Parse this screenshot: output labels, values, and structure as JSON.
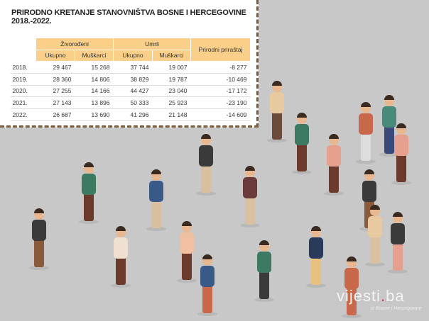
{
  "title_line1": "PRIRODNO KRETANJE STANOVNIŠTVA BOSNE I HERCEGOVINE",
  "title_line2": "2018.-2022.",
  "chart_data": {
    "type": "table",
    "group_headers": [
      "Živorođeni",
      "Umrli",
      "Prirodni priraštaj"
    ],
    "sub_headers": [
      "Ukupno",
      "Muškarci",
      "Ukupno",
      "Muškarci"
    ],
    "rows": [
      [
        "2018.",
        "29 467",
        "15 268",
        "37 744",
        "19 007",
        "-8 277"
      ],
      [
        "2019.",
        "28 360",
        "14 806",
        "38 829",
        "19 787",
        "-10 469"
      ],
      [
        "2020.",
        "27 255",
        "14 166",
        "44 427",
        "23 040",
        "-17 172"
      ],
      [
        "2021.",
        "27 143",
        "13 896",
        "50 333",
        "25 923",
        "-23 190"
      ],
      [
        "2022.",
        "26 687",
        "13 690",
        "41 296",
        "21 148",
        "-14 609"
      ]
    ]
  },
  "header_color": "#f9cf8a",
  "border_color": "#7a5a35",
  "logo": {
    "name": "vijesti",
    "tld": ".ba",
    "tagline": "iz Bosne i Hercegovine"
  }
}
